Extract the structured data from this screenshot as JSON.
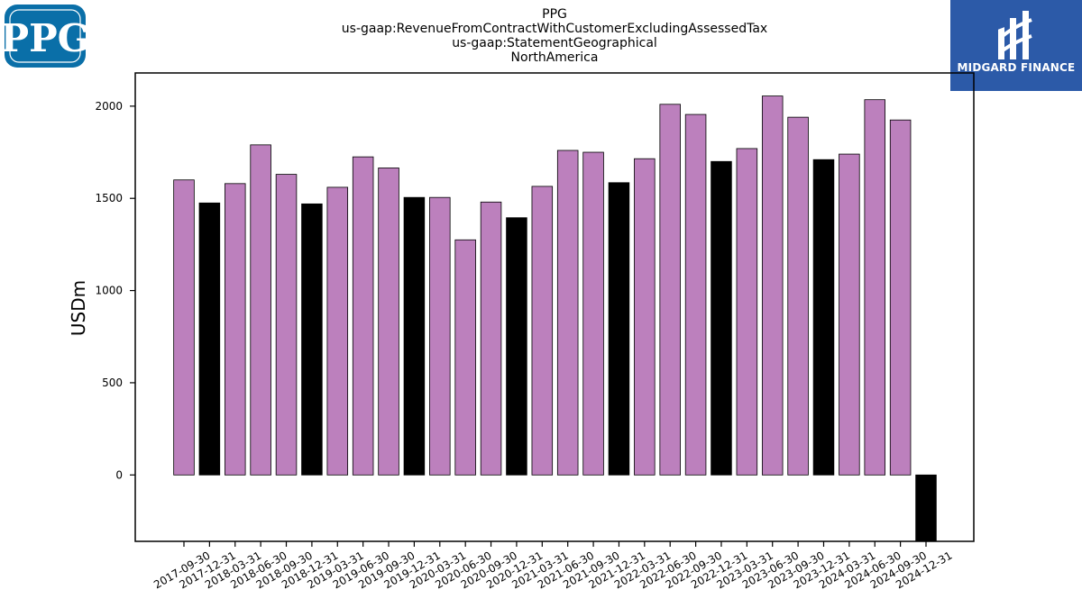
{
  "logos": {
    "left": {
      "text": "PPG",
      "color": "#0a6fa8"
    },
    "right": {
      "text": "MIDGARD FINANCE",
      "color": "#2c5aa8"
    }
  },
  "chart_data": {
    "type": "bar",
    "title_lines": [
      "PPG",
      "us-gaap:RevenueFromContractWithCustomerExcludingAssessedTax",
      "us-gaap:StatementGeographical",
      "NorthAmerica"
    ],
    "xlabel": "",
    "ylabel": "USDm",
    "ylim": [
      -360,
      2180
    ],
    "yticks": [
      0,
      500,
      1000,
      1500,
      2000
    ],
    "colors": {
      "quarter": "#bc80bd",
      "year_end": "#000000"
    },
    "categories": [
      "2017-09-30",
      "2017-12-31",
      "2018-03-31",
      "2018-06-30",
      "2018-09-30",
      "2018-12-31",
      "2019-03-31",
      "2019-06-30",
      "2019-09-30",
      "2019-12-31",
      "2020-03-31",
      "2020-06-30",
      "2020-09-30",
      "2020-12-31",
      "2021-03-31",
      "2021-06-30",
      "2021-09-30",
      "2021-12-31",
      "2022-03-31",
      "2022-06-30",
      "2022-09-30",
      "2022-12-31",
      "2023-03-31",
      "2023-06-30",
      "2023-09-30",
      "2023-12-31",
      "2024-03-31",
      "2024-06-30",
      "2024-09-30",
      "2024-12-31"
    ],
    "values": [
      1600,
      1475,
      1580,
      1790,
      1630,
      1470,
      1560,
      1725,
      1665,
      1505,
      1505,
      1275,
      1480,
      1395,
      1565,
      1760,
      1750,
      1585,
      1715,
      2010,
      1955,
      1700,
      1770,
      2055,
      1940,
      1710,
      1740,
      2035,
      1925,
      -360
    ],
    "year_end": [
      false,
      true,
      false,
      false,
      false,
      true,
      false,
      false,
      false,
      true,
      false,
      false,
      false,
      true,
      false,
      false,
      false,
      true,
      false,
      false,
      false,
      true,
      false,
      false,
      false,
      true,
      false,
      false,
      false,
      true
    ]
  }
}
